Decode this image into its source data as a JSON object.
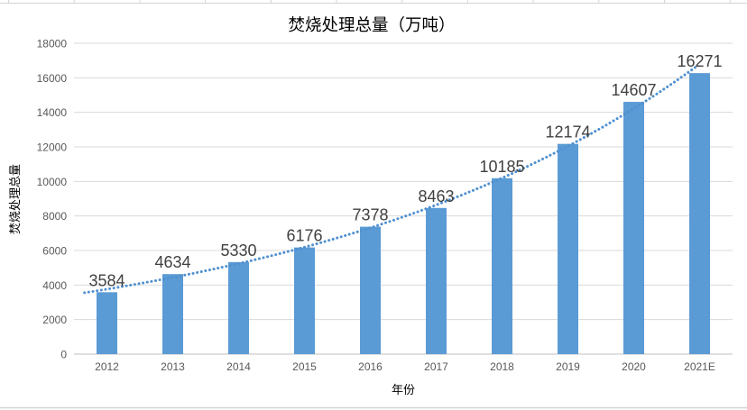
{
  "chart_data": {
    "type": "bar",
    "title": "焚烧处理总量（万吨）",
    "xlabel": "年份",
    "ylabel": "焚烧处理总量",
    "categories": [
      "2012",
      "2013",
      "2014",
      "2015",
      "2016",
      "2017",
      "2018",
      "2019",
      "2020",
      "2021E"
    ],
    "values": [
      3584,
      4634,
      5330,
      6176,
      7378,
      8463,
      10185,
      12174,
      14607,
      16271
    ],
    "data_labels": [
      "3584",
      "4634",
      "5330",
      "6176",
      "7378",
      "8463",
      "10185",
      "12174",
      "14607",
      "16271"
    ],
    "ylim": [
      0,
      18000
    ],
    "ytick_step": 2000,
    "grid": true,
    "legend": "none",
    "bar_color": "#5b9bd5",
    "label_color": "#404040",
    "axis_text_color": "#595959",
    "gridline_color": "#d9d9d9",
    "axis_line_color": "#bfbfbf",
    "spreadsheet_line_color": "#d4d4d4",
    "trendline": {
      "type": "exponential",
      "style": "dotted",
      "color": "#4f90d0",
      "a": 3762,
      "b": 0.1662,
      "t_start": -0.34,
      "t_end": 8.99
    }
  }
}
